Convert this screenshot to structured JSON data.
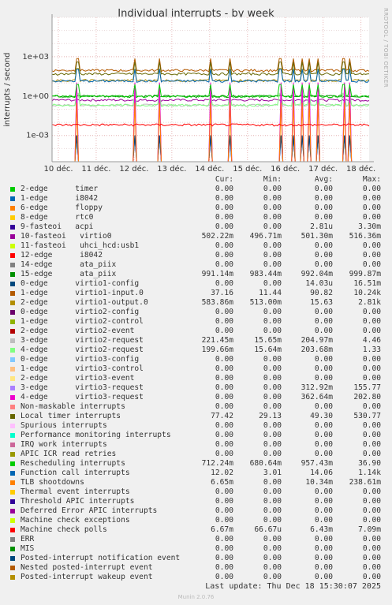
{
  "title": "Individual interrupts - by week",
  "side_label": "RRDTOOL / TOBI OETIKER",
  "last_update": "Last update: Thu Dec 18 15:30:07 2025",
  "version": "Munin 2.0.76",
  "legend_headers": {
    "cur": "Cur:",
    "min": "Min:",
    "avg": "Avg:",
    "max": "Max:"
  },
  "chart_data": {
    "type": "line",
    "title": "Individual interrupts - by week",
    "ylabel": "interrupts / second",
    "y_scale": "log",
    "ylim": [
      1e-05,
      1000000
    ],
    "y_ticks": [
      "1e-03",
      "1e+00",
      "1e+03"
    ],
    "x_ticks": [
      "10 déc.",
      "11 déc.",
      "12 déc.",
      "13 déc.",
      "14 déc.",
      "15 déc.",
      "16 déc.",
      "17 déc.",
      "18 déc."
    ],
    "grid": true,
    "series": [
      {
        "name": "2-edge      timer",
        "color": "#00cc00",
        "cur": "0.00",
        "min": "0.00",
        "avg": "0.00",
        "max": "0.00"
      },
      {
        "name": "1-edge      i8042",
        "color": "#0066b3",
        "cur": "0.00",
        "min": "0.00",
        "avg": "0.00",
        "max": "0.00"
      },
      {
        "name": "6-edge      floppy",
        "color": "#ff8000",
        "cur": "0.00",
        "min": "0.00",
        "avg": "0.00",
        "max": "0.00"
      },
      {
        "name": "8-edge      rtc0",
        "color": "#ffcc00",
        "cur": "0.00",
        "min": "0.00",
        "avg": "0.00",
        "max": "0.00"
      },
      {
        "name": "9-fasteoi   acpi",
        "color": "#330099",
        "cur": "0.00",
        "min": "0.00",
        "avg": "2.81u",
        "max": "3.30m"
      },
      {
        "name": "10-fasteoi   virtio0",
        "color": "#990099",
        "cur": "502.22m",
        "min": "496.71m",
        "avg": "501.30m",
        "max": "516.36m"
      },
      {
        "name": "11-fasteoi   uhci_hcd:usb1",
        "color": "#ccff00",
        "cur": "0.00",
        "min": "0.00",
        "avg": "0.00",
        "max": "0.00"
      },
      {
        "name": "12-edge      i8042",
        "color": "#ff0000",
        "cur": "0.00",
        "min": "0.00",
        "avg": "0.00",
        "max": "0.00"
      },
      {
        "name": "14-edge      ata_piix",
        "color": "#808080",
        "cur": "0.00",
        "min": "0.00",
        "avg": "0.00",
        "max": "0.00"
      },
      {
        "name": "15-edge      ata_piix",
        "color": "#008f00",
        "cur": "991.14m",
        "min": "983.44m",
        "avg": "992.04m",
        "max": "999.87m"
      },
      {
        "name": "0-edge      virtio1-config",
        "color": "#00487d",
        "cur": "0.00",
        "min": "0.00",
        "avg": "14.03u",
        "max": "16.51m"
      },
      {
        "name": "1-edge      virtio1-input.0",
        "color": "#b35a00",
        "cur": "37.16",
        "min": "11.44",
        "avg": "90.82",
        "max": "10.24k"
      },
      {
        "name": "2-edge      virtio1-output.0",
        "color": "#b38f00",
        "cur": "583.86m",
        "min": "513.00m",
        "avg": "15.63",
        "max": "2.81k"
      },
      {
        "name": "0-edge      virtio2-config",
        "color": "#6b006b",
        "cur": "0.00",
        "min": "0.00",
        "avg": "0.00",
        "max": "0.00"
      },
      {
        "name": "1-edge      virtio2-control",
        "color": "#8fb300",
        "cur": "0.00",
        "min": "0.00",
        "avg": "0.00",
        "max": "0.00"
      },
      {
        "name": "2-edge      virtio2-event",
        "color": "#b30000",
        "cur": "0.00",
        "min": "0.00",
        "avg": "0.00",
        "max": "0.00"
      },
      {
        "name": "3-edge      virtio2-request",
        "color": "#bebebe",
        "cur": "221.45m",
        "min": "15.65m",
        "avg": "204.97m",
        "max": "4.46"
      },
      {
        "name": "4-edge      virtio2-request",
        "color": "#80ff80",
        "cur": "199.66m",
        "min": "15.64m",
        "avg": "203.68m",
        "max": "1.33"
      },
      {
        "name": "0-edge      virtio3-config",
        "color": "#80c9ff",
        "cur": "0.00",
        "min": "0.00",
        "avg": "0.00",
        "max": "0.00"
      },
      {
        "name": "1-edge      virtio3-control",
        "color": "#ffc080",
        "cur": "0.00",
        "min": "0.00",
        "avg": "0.00",
        "max": "0.00"
      },
      {
        "name": "2-edge      virtio3-event",
        "color": "#ffe680",
        "cur": "0.00",
        "min": "0.00",
        "avg": "0.00",
        "max": "0.00"
      },
      {
        "name": "3-edge      virtio3-request",
        "color": "#aa80ff",
        "cur": "0.00",
        "min": "0.00",
        "avg": "312.92m",
        "max": "155.77"
      },
      {
        "name": "4-edge      virtio3-request",
        "color": "#ee00cc",
        "cur": "0.00",
        "min": "0.00",
        "avg": "362.64m",
        "max": "202.80"
      },
      {
        "name": "Non-maskable interrupts",
        "color": "#ff8080",
        "cur": "0.00",
        "min": "0.00",
        "avg": "0.00",
        "max": "0.00"
      },
      {
        "name": "Local timer interrupts",
        "color": "#666600",
        "cur": "77.42",
        "min": "29.13",
        "avg": "49.30",
        "max": "530.77"
      },
      {
        "name": "Spurious interrupts",
        "color": "#ffbfff",
        "cur": "0.00",
        "min": "0.00",
        "avg": "0.00",
        "max": "0.00"
      },
      {
        "name": "Performance monitoring interrupts",
        "color": "#00ffcc",
        "cur": "0.00",
        "min": "0.00",
        "avg": "0.00",
        "max": "0.00"
      },
      {
        "name": "IRQ work interrupts",
        "color": "#cc6699",
        "cur": "0.00",
        "min": "0.00",
        "avg": "0.00",
        "max": "0.00"
      },
      {
        "name": "APIC ICR read retries",
        "color": "#999900",
        "cur": "0.00",
        "min": "0.00",
        "avg": "0.00",
        "max": "0.00"
      },
      {
        "name": "Rescheduling interrupts",
        "color": "#00cc00",
        "cur": "712.24m",
        "min": "680.64m",
        "avg": "957.43m",
        "max": "36.90"
      },
      {
        "name": "Function call interrupts",
        "color": "#0066b3",
        "cur": "12.02",
        "min": "3.01",
        "avg": "14.06",
        "max": "1.14k"
      },
      {
        "name": "TLB shootdowns",
        "color": "#ff8000",
        "cur": "6.65m",
        "min": "0.00",
        "avg": "10.34m",
        "max": "238.61m"
      },
      {
        "name": "Thermal event interrupts",
        "color": "#ffcc00",
        "cur": "0.00",
        "min": "0.00",
        "avg": "0.00",
        "max": "0.00"
      },
      {
        "name": "Threshold APIC interrupts",
        "color": "#330099",
        "cur": "0.00",
        "min": "0.00",
        "avg": "0.00",
        "max": "0.00"
      },
      {
        "name": "Deferred Error APIC interrupts",
        "color": "#990099",
        "cur": "0.00",
        "min": "0.00",
        "avg": "0.00",
        "max": "0.00"
      },
      {
        "name": "Machine check exceptions",
        "color": "#ccff00",
        "cur": "0.00",
        "min": "0.00",
        "avg": "0.00",
        "max": "0.00"
      },
      {
        "name": "Machine check polls",
        "color": "#ff0000",
        "cur": "6.67m",
        "min": "66.67u",
        "avg": "6.43m",
        "max": "7.09m"
      },
      {
        "name": "ERR",
        "color": "#808080",
        "cur": "0.00",
        "min": "0.00",
        "avg": "0.00",
        "max": "0.00"
      },
      {
        "name": "MIS",
        "color": "#008f00",
        "cur": "0.00",
        "min": "0.00",
        "avg": "0.00",
        "max": "0.00"
      },
      {
        "name": "Posted-interrupt notification event",
        "color": "#00487d",
        "cur": "0.00",
        "min": "0.00",
        "avg": "0.00",
        "max": "0.00"
      },
      {
        "name": "Nested posted-interrupt event",
        "color": "#b35a00",
        "cur": "0.00",
        "min": "0.00",
        "avg": "0.00",
        "max": "0.00"
      },
      {
        "name": "Posted-interrupt wakeup event",
        "color": "#b38f00",
        "cur": "0.00",
        "min": "0.00",
        "avg": "0.00",
        "max": "0.00"
      }
    ]
  }
}
